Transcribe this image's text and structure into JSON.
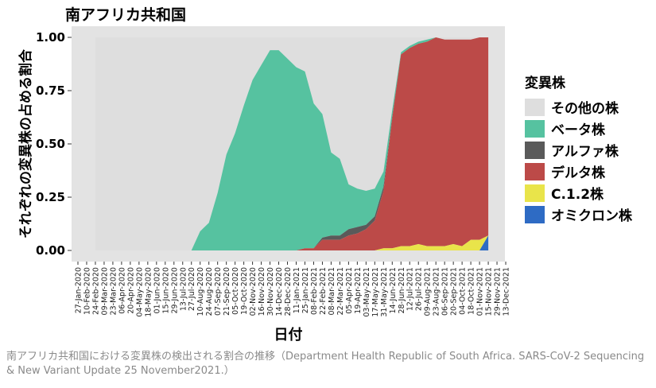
{
  "chart_data": {
    "type": "area",
    "title": "南アフリカ共和国",
    "xlabel": "日付",
    "ylabel": "それぞれの変異株の占める割合",
    "ylim": [
      0,
      1
    ],
    "yticks": [
      "0.00",
      "0.25",
      "0.50",
      "0.75",
      "1.00"
    ],
    "yticks_values": [
      0,
      0.25,
      0.5,
      0.75,
      1
    ],
    "x": [
      "27-Jan-2020",
      "10-Feb-2020",
      "24-Feb-2020",
      "09-Mar-2020",
      "23-Mar-2020",
      "06-Apr-2020",
      "20-Apr-2020",
      "04-May-2020",
      "18-May-2020",
      "01-Jun-2020",
      "15-Jun-2020",
      "29-Jun-2020",
      "13-Jul-2020",
      "27-Jul-2020",
      "10-Aug-2020",
      "24-Aug-2020",
      "07-Sep-2020",
      "21-Sep-2020",
      "05-Oct-2020",
      "19-Oct-2020",
      "02-Nov-2020",
      "16-Nov-2020",
      "30-Nov-2020",
      "14-Dec-2020",
      "28-Dec-2020",
      "11-Jan-2021",
      "25-Jan-2021",
      "08-Feb-2021",
      "22-Feb-2021",
      "08-Mar-2021",
      "22-Mar-2021",
      "05-Apr-2021",
      "19-Apr-2021",
      "03-May-2021",
      "17-May-2021",
      "31-May-2021",
      "14-Jun-2021",
      "28-Jun-2021",
      "12-Jul-2021",
      "26-Jul-2021",
      "09-Aug-2021",
      "23-Aug-2021",
      "06-Sep-2021",
      "20-Sep-2021",
      "04-Oct-2021",
      "18-Oct-2021",
      "01-Nov-2021",
      "15-Nov-2021",
      "29-Nov-2021",
      "13-Dec-2021"
    ],
    "legend_title": "変異株",
    "legend_position": "right",
    "series": [
      {
        "name": "その他の株",
        "color": "#dedede",
        "values": [
          null,
          null,
          1,
          1,
          1,
          1,
          1,
          1,
          1,
          1,
          1,
          1,
          1,
          1,
          1,
          1,
          1,
          1,
          1,
          1,
          1,
          1,
          1,
          1,
          1,
          1,
          1,
          1,
          1,
          1,
          1,
          1,
          1,
          1,
          1,
          1,
          1,
          1,
          1,
          1,
          1,
          1,
          1,
          1,
          1,
          1,
          1,
          1,
          null,
          null
        ]
      },
      {
        "name": "ベータ株",
        "color": "#56c2a0",
        "values": [
          null,
          null,
          0,
          0,
          0,
          0,
          0,
          0,
          0,
          0,
          0,
          0,
          0,
          0,
          0.09,
          0.13,
          0.27,
          0.45,
          0.55,
          0.68,
          0.8,
          0.87,
          0.94,
          0.94,
          0.9,
          0.86,
          0.83,
          0.68,
          0.58,
          0.39,
          0.36,
          0.21,
          0.18,
          0.16,
          0.13,
          0.07,
          0.03,
          0.01,
          0.01,
          0.01,
          0.01,
          0,
          0,
          0,
          0,
          0,
          0,
          0,
          null,
          null
        ]
      },
      {
        "name": "アルファ株",
        "color": "#5a5a5a",
        "values": [
          null,
          null,
          0,
          0,
          0,
          0,
          0,
          0,
          0,
          0,
          0,
          0,
          0,
          0,
          0,
          0,
          0,
          0,
          0,
          0,
          0,
          0,
          0,
          0,
          0,
          0,
          0,
          0,
          0.01,
          0.02,
          0.02,
          0.03,
          0.03,
          0.02,
          0.02,
          0.02,
          0.01,
          0,
          0,
          0,
          0,
          0,
          0,
          0,
          0,
          0,
          0,
          0,
          null,
          null
        ]
      },
      {
        "name": "デルタ株",
        "color": "#bc4a48",
        "values": [
          null,
          null,
          0,
          0,
          0,
          0,
          0,
          0,
          0,
          0,
          0,
          0,
          0,
          0,
          0,
          0,
          0,
          0,
          0,
          0,
          0,
          0,
          0,
          0,
          0,
          0,
          0.01,
          0.01,
          0.05,
          0.05,
          0.05,
          0.07,
          0.08,
          0.1,
          0.14,
          0.27,
          0.61,
          0.9,
          0.93,
          0.94,
          0.96,
          0.98,
          0.97,
          0.96,
          0.97,
          0.94,
          0.95,
          0.93,
          null,
          null
        ]
      },
      {
        "name": "C.1.2株",
        "color": "#e9e44a",
        "values": [
          null,
          null,
          0,
          0,
          0,
          0,
          0,
          0,
          0,
          0,
          0,
          0,
          0,
          0,
          0,
          0,
          0,
          0,
          0,
          0,
          0,
          0,
          0,
          0,
          0,
          0,
          0,
          0,
          0,
          0,
          0,
          0,
          0,
          0,
          0,
          0.01,
          0.01,
          0.02,
          0.02,
          0.03,
          0.02,
          0.02,
          0.02,
          0.03,
          0.02,
          0.05,
          0.05,
          0,
          null,
          null
        ]
      },
      {
        "name": "オミクロン株",
        "color": "#2e6bc4",
        "values": [
          null,
          null,
          0,
          0,
          0,
          0,
          0,
          0,
          0,
          0,
          0,
          0,
          0,
          0,
          0,
          0,
          0,
          0,
          0,
          0,
          0,
          0,
          0,
          0,
          0,
          0,
          0,
          0,
          0,
          0,
          0,
          0,
          0,
          0,
          0,
          0,
          0,
          0,
          0,
          0,
          0,
          0,
          0,
          0,
          0,
          0,
          0,
          0.07,
          null,
          null
        ]
      }
    ]
  },
  "caption": "南アフリカ共和国における変異株の検出される割合の推移（Department Health Republic of South Africa. SARS-CoV-2 Sequencing & New Variant Update 25 November2021.）"
}
